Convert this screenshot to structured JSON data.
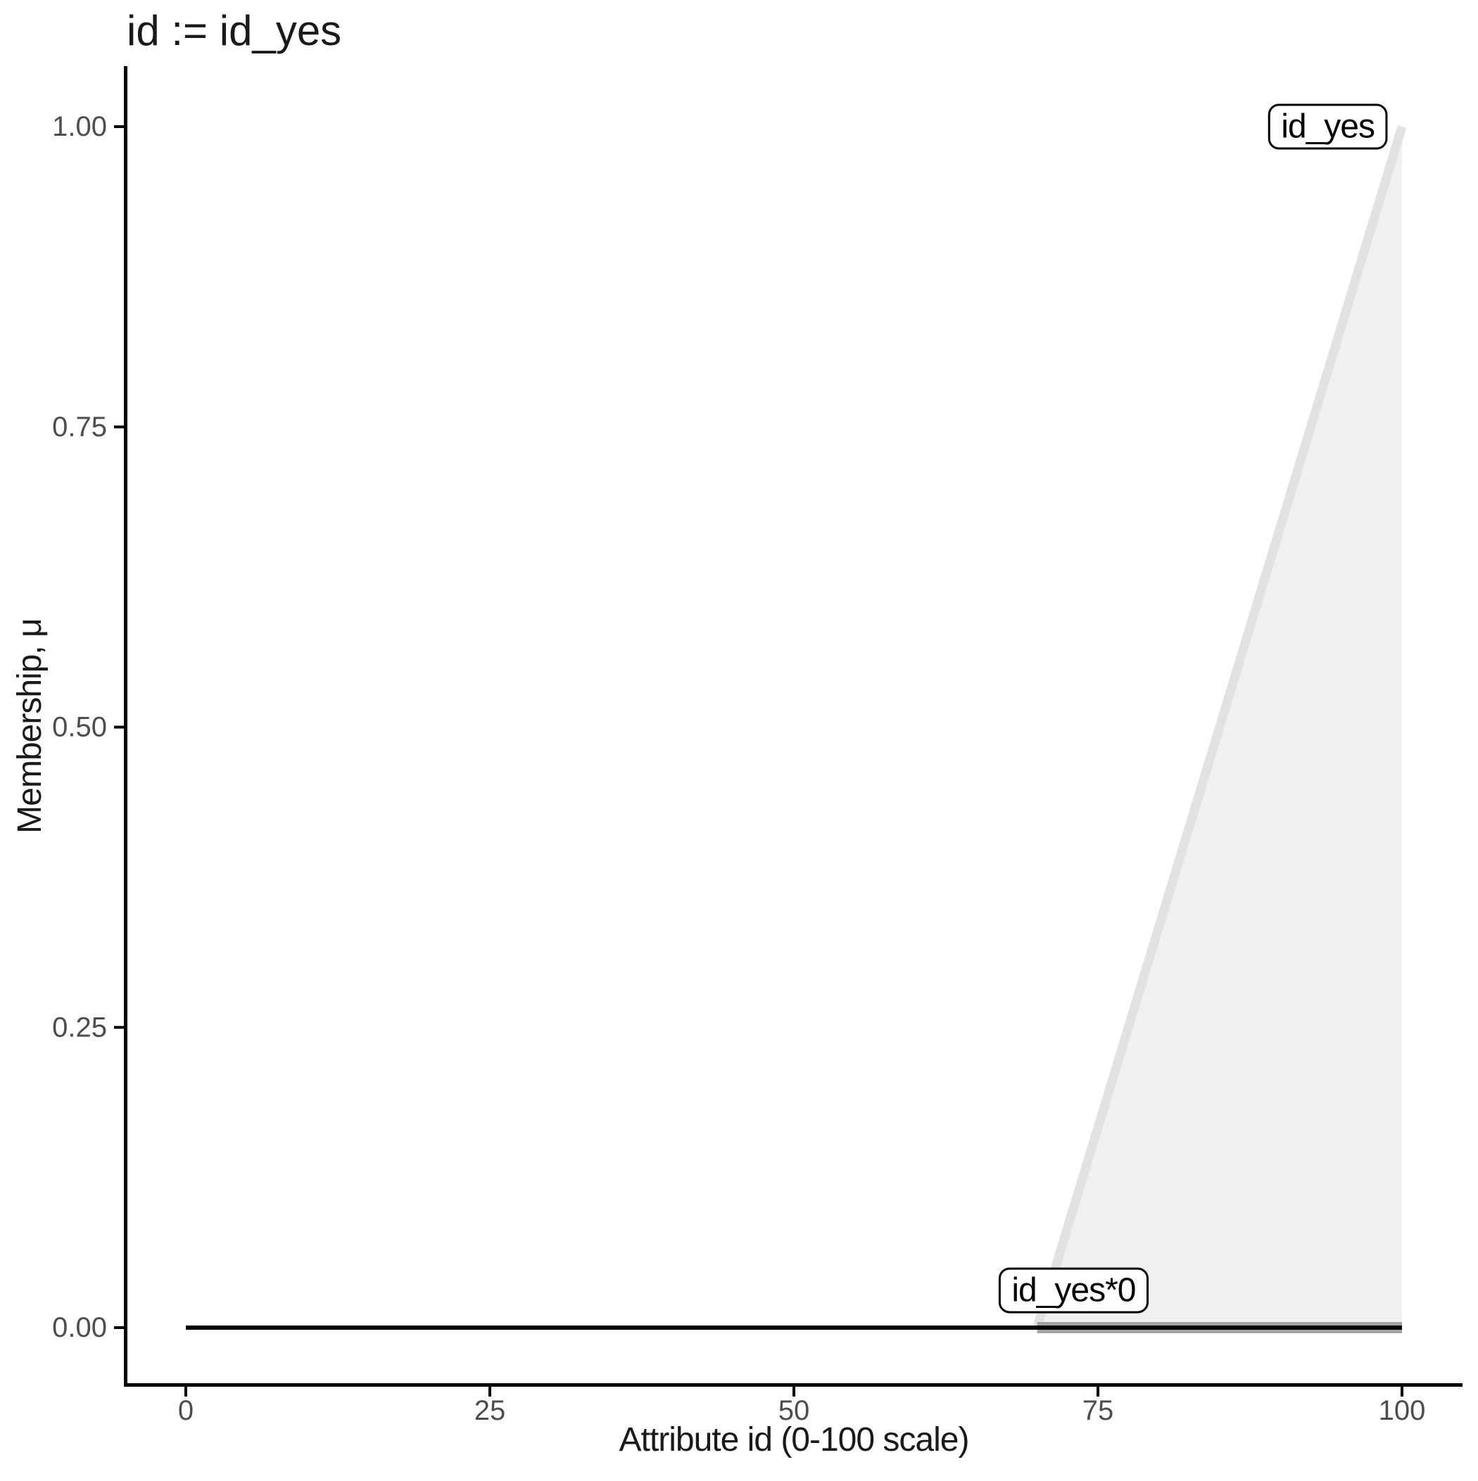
{
  "chart_data": {
    "type": "area",
    "title": "id := id_yes",
    "xlabel": "Attribute id (0-100 scale)",
    "ylabel": "Membership, μ",
    "xlim": [
      0,
      100
    ],
    "ylim": [
      0,
      1
    ],
    "grid": false,
    "legend": "none",
    "x_ticks": [
      {
        "value": 0,
        "label": "0"
      },
      {
        "value": 25,
        "label": "25"
      },
      {
        "value": 50,
        "label": "50"
      },
      {
        "value": 75,
        "label": "75"
      },
      {
        "value": 100,
        "label": "100"
      }
    ],
    "y_ticks": [
      {
        "value": 0.0,
        "label": "0.00"
      },
      {
        "value": 0.25,
        "label": "0.25"
      },
      {
        "value": 0.5,
        "label": "0.50"
      },
      {
        "value": 0.75,
        "label": "0.75"
      },
      {
        "value": 1.0,
        "label": "1.00"
      }
    ],
    "area": {
      "name": "id_yes-fill",
      "points": [
        [
          70,
          0
        ],
        [
          100,
          1
        ],
        [
          100,
          0
        ]
      ],
      "fill": "#f0f0f0"
    },
    "series": [
      {
        "name": "id_yes",
        "points": [
          [
            70,
            0
          ],
          [
            100,
            1
          ]
        ],
        "color": "#e2e2e2",
        "width": 13
      },
      {
        "name": "id_yes*0 support band",
        "points": [
          [
            70,
            0
          ],
          [
            100,
            0
          ]
        ],
        "color": "#a3a3a3",
        "width": 16
      },
      {
        "name": "id_yes*0",
        "points": [
          [
            0,
            0
          ],
          [
            100,
            0
          ]
        ],
        "color": "#000000",
        "width": 6
      }
    ],
    "annotations": [
      {
        "text": "id_yes",
        "x": 93.9,
        "mu": 1.0
      },
      {
        "text": "id_yes*0",
        "x": 73.0,
        "mu": 0.031
      }
    ]
  },
  "style": {
    "background": "#ffffff",
    "axis_color": "#000000",
    "title_color": "#1a1a1a",
    "axis_title_color": "#1a1a1a",
    "tick_label_color": "#4d4d4d",
    "annotation_border": "#000000",
    "annotation_fill": "#ffffff",
    "annotation_text": "#000000"
  }
}
